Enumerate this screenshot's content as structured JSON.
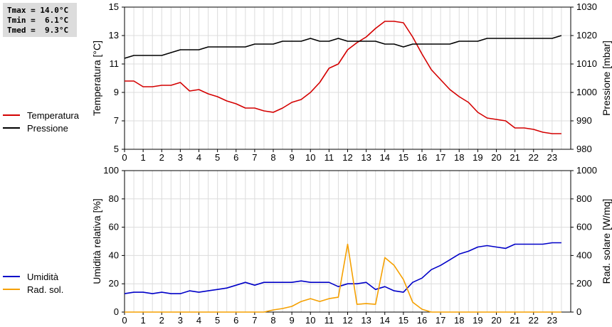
{
  "stats": {
    "tmax": "Tmax = 14.0°C",
    "tmin": "Tmin =  6.1°C",
    "tmed": "Tmed =  9.3°C"
  },
  "legend_top": [
    {
      "label": "Temperatura",
      "color": "#d40000"
    },
    {
      "label": "Pressione",
      "color": "#000000"
    }
  ],
  "legend_bottom": [
    {
      "label": "Umidità",
      "color": "#0000c8"
    },
    {
      "label": "Rad. sol.",
      "color": "#f5a000"
    }
  ],
  "chart_data": [
    {
      "type": "line",
      "xlabel": "",
      "ylabel": "Temperatura [°C]",
      "y2label": "Pressione [mbar]",
      "xlim": [
        0,
        24
      ],
      "ylim": [
        5,
        15
      ],
      "y2lim": [
        980,
        1030
      ],
      "x_ticks": [
        0,
        1,
        2,
        3,
        4,
        5,
        6,
        7,
        8,
        9,
        10,
        11,
        12,
        13,
        14,
        15,
        16,
        17,
        18,
        19,
        20,
        21,
        22,
        23
      ],
      "y_ticks": [
        5,
        7,
        9,
        11,
        13,
        15
      ],
      "y2_ticks": [
        980,
        990,
        1000,
        1010,
        1020,
        1030
      ],
      "grid": true,
      "series": [
        {
          "name": "Temperatura",
          "axis": "left",
          "color": "#d40000",
          "x": [
            0,
            0.5,
            1,
            1.5,
            2,
            2.5,
            3,
            3.5,
            4,
            4.5,
            5,
            5.5,
            6,
            6.5,
            7,
            7.5,
            8,
            8.5,
            9,
            9.5,
            10,
            10.5,
            11,
            11.5,
            12,
            12.5,
            13,
            13.5,
            14,
            14.5,
            15,
            15.5,
            16,
            16.5,
            17,
            17.5,
            18,
            18.5,
            19,
            19.5,
            20,
            20.5,
            21,
            21.5,
            22,
            22.5,
            23,
            23.5
          ],
          "values": [
            9.8,
            9.8,
            9.4,
            9.4,
            9.5,
            9.5,
            9.7,
            9.1,
            9.2,
            8.9,
            8.7,
            8.4,
            8.2,
            7.9,
            7.9,
            7.7,
            7.6,
            7.9,
            8.3,
            8.5,
            9.0,
            9.7,
            10.7,
            11.0,
            12.0,
            12.5,
            12.9,
            13.5,
            14.0,
            14.0,
            13.9,
            12.9,
            11.7,
            10.6,
            9.9,
            9.2,
            8.7,
            8.3,
            7.6,
            7.2,
            7.1,
            7.0,
            6.5,
            6.5,
            6.4,
            6.2,
            6.1,
            6.1
          ]
        },
        {
          "name": "Pressione",
          "axis": "right",
          "color": "#000000",
          "x": [
            0,
            0.5,
            1,
            1.5,
            2,
            2.5,
            3,
            3.5,
            4,
            4.5,
            5,
            5.5,
            6,
            6.5,
            7,
            7.5,
            8,
            8.5,
            9,
            9.5,
            10,
            10.5,
            11,
            11.5,
            12,
            12.5,
            13,
            13.5,
            14,
            14.5,
            15,
            15.5,
            16,
            16.5,
            17,
            17.5,
            18,
            18.5,
            19,
            19.5,
            20,
            20.5,
            21,
            21.5,
            22,
            22.5,
            23,
            23.5
          ],
          "values": [
            1012,
            1013,
            1013,
            1013,
            1013,
            1014,
            1015,
            1015,
            1015,
            1016,
            1016,
            1016,
            1016,
            1016,
            1017,
            1017,
            1017,
            1018,
            1018,
            1018,
            1019,
            1018,
            1018,
            1019,
            1018,
            1018,
            1018,
            1018,
            1017,
            1017,
            1016,
            1017,
            1017,
            1017,
            1017,
            1017,
            1018,
            1018,
            1018,
            1019,
            1019,
            1019,
            1019,
            1019,
            1019,
            1019,
            1019,
            1020
          ]
        }
      ]
    },
    {
      "type": "line",
      "xlabel": "",
      "ylabel": "Umidità relativa [%]",
      "y2label": "Rad. solare [W/mq]",
      "xlim": [
        0,
        24
      ],
      "ylim": [
        0,
        100
      ],
      "y2lim": [
        0,
        1000
      ],
      "x_ticks": [
        0,
        1,
        2,
        3,
        4,
        5,
        6,
        7,
        8,
        9,
        10,
        11,
        12,
        13,
        14,
        15,
        16,
        17,
        18,
        19,
        20,
        21,
        22,
        23
      ],
      "y_ticks": [
        0,
        20,
        40,
        60,
        80,
        100
      ],
      "y2_ticks": [
        0,
        200,
        400,
        600,
        800,
        1000
      ],
      "grid": true,
      "series": [
        {
          "name": "Umidità",
          "axis": "left",
          "color": "#0000c8",
          "x": [
            0,
            0.5,
            1,
            1.5,
            2,
            2.5,
            3,
            3.5,
            4,
            4.5,
            5,
            5.5,
            6,
            6.5,
            7,
            7.5,
            8,
            8.5,
            9,
            9.5,
            10,
            10.5,
            11,
            11.5,
            12,
            12.5,
            13,
            13.5,
            14,
            14.5,
            15,
            15.5,
            16,
            16.5,
            17,
            17.5,
            18,
            18.5,
            19,
            19.5,
            20,
            20.5,
            21,
            21.5,
            22,
            22.5,
            23,
            23.5
          ],
          "values": [
            13,
            14,
            14,
            13,
            14,
            13,
            13,
            15,
            14,
            15,
            16,
            17,
            19,
            21,
            19,
            21,
            21,
            21,
            21,
            22,
            21,
            21,
            21,
            18,
            20,
            20,
            21,
            16,
            18,
            15,
            14,
            21,
            24,
            30,
            33,
            37,
            41,
            43,
            46,
            47,
            46,
            45,
            48,
            48,
            48,
            48,
            49,
            49
          ]
        },
        {
          "name": "Rad. sol.",
          "axis": "right",
          "color": "#f5a000",
          "x": [
            0,
            0.5,
            1,
            1.5,
            2,
            2.5,
            3,
            3.5,
            4,
            4.5,
            5,
            5.5,
            6,
            6.5,
            7,
            7.5,
            8,
            8.5,
            9,
            9.5,
            10,
            10.5,
            11,
            11.5,
            12,
            12.5,
            13,
            13.5,
            14,
            14.5,
            15,
            15.5,
            16,
            16.5,
            17,
            17.5,
            18,
            18.5,
            19,
            19.5,
            20,
            20.5,
            21,
            21.5,
            22,
            22.5,
            23,
            23.5
          ],
          "values": [
            0,
            0,
            0,
            0,
            0,
            0,
            0,
            0,
            0,
            0,
            0,
            0,
            0,
            0,
            0,
            0,
            15,
            25,
            40,
            75,
            95,
            75,
            95,
            105,
            480,
            55,
            60,
            55,
            385,
            330,
            230,
            70,
            20,
            0,
            0,
            0,
            0,
            0,
            0,
            0,
            0,
            0,
            0,
            0,
            0,
            0,
            0,
            0
          ]
        }
      ]
    }
  ]
}
